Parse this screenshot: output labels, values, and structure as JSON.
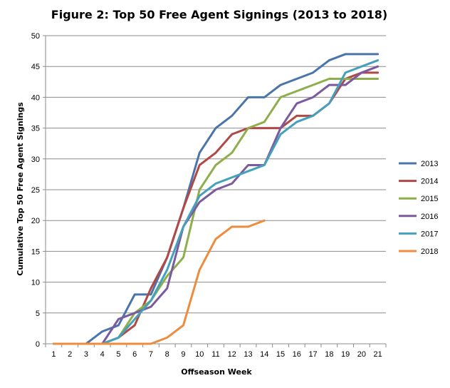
{
  "chart_data": {
    "type": "line",
    "title": "Figure 2: Top 50 Free Agent Signings (2013 to 2018)",
    "xlabel": "Offseason Week",
    "ylabel": "Cumulative Top 50 Free Agent Signings",
    "x": [
      1,
      2,
      3,
      4,
      5,
      6,
      7,
      8,
      9,
      10,
      11,
      12,
      13,
      14,
      15,
      16,
      17,
      18,
      19,
      20,
      21
    ],
    "xlim": [
      1,
      21
    ],
    "ylim": [
      0,
      50
    ],
    "yticks": [
      0,
      5,
      10,
      15,
      20,
      25,
      30,
      35,
      40,
      45,
      50
    ],
    "grid": "horizontal",
    "legend_position": "right",
    "series": [
      {
        "name": "2013",
        "color": "#4a74ab",
        "values": [
          0,
          0,
          0,
          2,
          3,
          8,
          8,
          14,
          22,
          31,
          35,
          37,
          40,
          40,
          42,
          43,
          44,
          46,
          47,
          47,
          47
        ]
      },
      {
        "name": "2014",
        "color": "#b14846",
        "values": [
          0,
          0,
          0,
          0,
          1,
          3,
          9,
          14,
          22,
          29,
          31,
          34,
          35,
          35,
          35,
          37,
          37,
          39,
          43,
          44,
          44
        ]
      },
      {
        "name": "2015",
        "color": "#8eae4c",
        "values": [
          0,
          0,
          0,
          0,
          1,
          5,
          7,
          11,
          14,
          25,
          29,
          31,
          35,
          36,
          40,
          41,
          42,
          43,
          43,
          43,
          43
        ]
      },
      {
        "name": "2016",
        "color": "#7b5aa0",
        "values": [
          0,
          0,
          0,
          0,
          4,
          5,
          6,
          9,
          19,
          23,
          25,
          26,
          29,
          29,
          35,
          39,
          40,
          42,
          42,
          44,
          45
        ]
      },
      {
        "name": "2017",
        "color": "#45a0bb",
        "values": [
          0,
          0,
          0,
          0,
          1,
          4,
          7,
          12,
          19,
          24,
          26,
          27,
          28,
          29,
          34,
          36,
          37,
          39,
          44,
          45,
          46
        ]
      },
      {
        "name": "2018",
        "color": "#ee8c3e",
        "values": [
          0,
          0,
          0,
          0,
          0,
          0,
          0,
          1,
          3,
          12,
          17,
          19,
          19,
          20,
          null,
          null,
          null,
          null,
          null,
          null,
          null
        ]
      }
    ]
  }
}
